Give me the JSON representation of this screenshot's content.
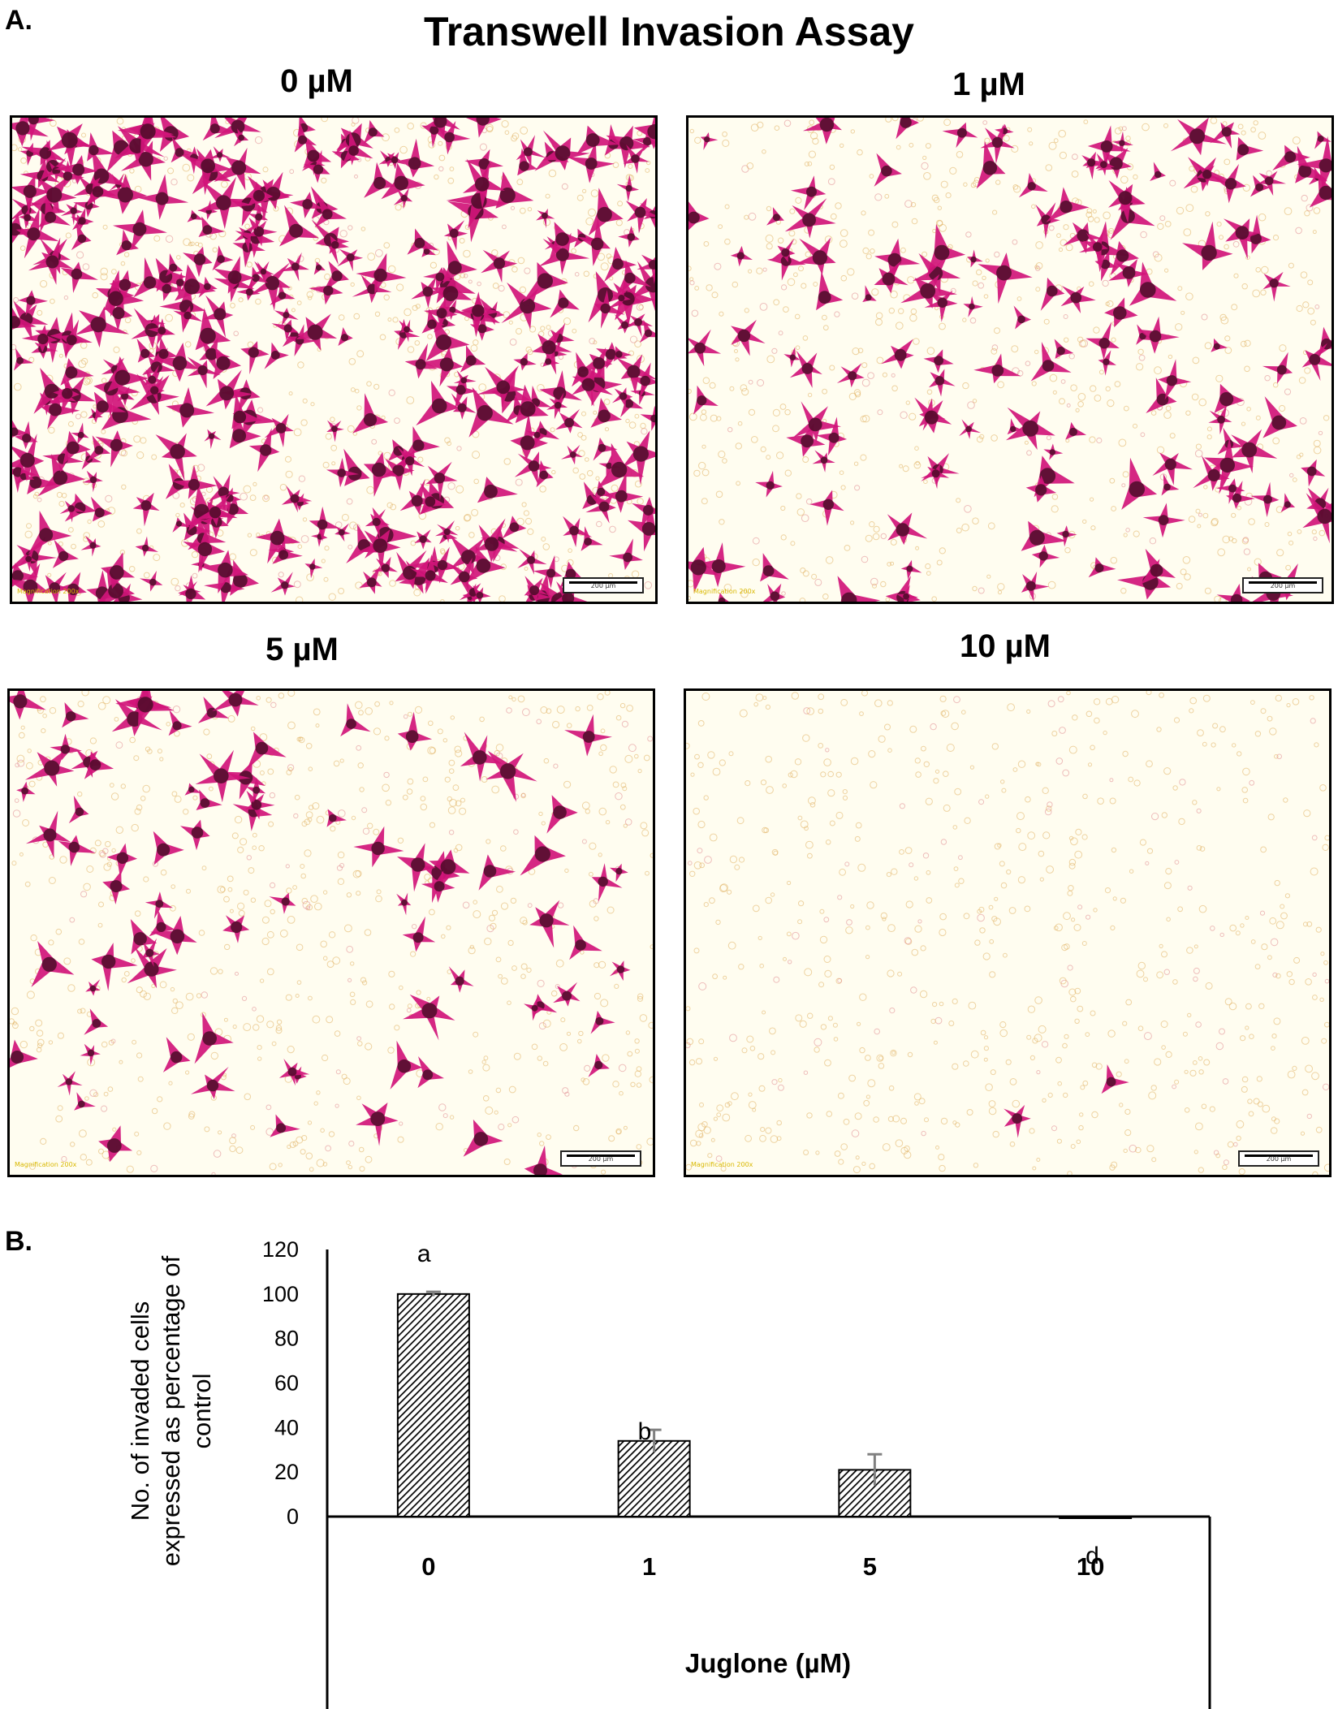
{
  "panel_a": {
    "letter": "A.",
    "title": "Transwell Invasion Assay",
    "images": [
      {
        "label": "0 µM",
        "scale_text": "200 µm",
        "corner_text": "Magnification 200x",
        "density": 0.95
      },
      {
        "label": "1 µM",
        "scale_text": "200 µm",
        "corner_text": "Magnification 200x",
        "density": 0.35
      },
      {
        "label": "5 µM",
        "scale_text": "200 µm",
        "corner_text": "Magnification 200x",
        "density": 0.2
      },
      {
        "label": "10 µM",
        "scale_text": "200 µm",
        "corner_text": "Magnification 200x",
        "density": 0.005
      }
    ],
    "colors": {
      "cell": "#d1157a",
      "cell_dark": "#3a0a1c",
      "background": "#fffdf0",
      "debris": "#e0b060"
    }
  },
  "panel_b": {
    "letter": "B.",
    "chart_data": {
      "type": "bar",
      "categories": [
        "0",
        "1",
        "5",
        "10"
      ],
      "values": [
        100,
        34,
        21,
        0
      ],
      "errors": [
        1,
        5,
        7,
        0
      ],
      "significance": [
        "a",
        "b",
        "",
        "d"
      ],
      "xlabel": "Juglone (µM)",
      "ylabel": "No. of invaded cells expressed as percentage of control",
      "ylabel_lines": [
        "No. of invaded cells",
        "expressed as percentage of",
        "control"
      ],
      "yticks": [
        0,
        20,
        40,
        60,
        80,
        100,
        120
      ],
      "ylim": [
        0,
        120
      ],
      "grid": false,
      "bar_fill": "diagonal hatch",
      "bar_color": "#000000"
    }
  }
}
